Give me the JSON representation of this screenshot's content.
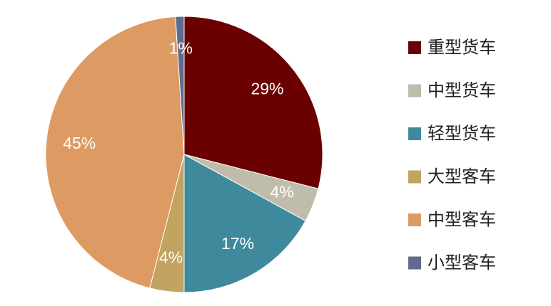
{
  "chart_data": {
    "type": "pie",
    "categories": [
      "重型货车",
      "中型货车",
      "轻型货车",
      "大型客车",
      "中型客车",
      "小型客车"
    ],
    "values": [
      29,
      4,
      17,
      4,
      45,
      1
    ],
    "value_labels": [
      "29%",
      "4%",
      "17%",
      "4%",
      "45%",
      "1%"
    ],
    "colors": [
      "#6b0000",
      "#bfbcaa",
      "#3e8a9c",
      "#c2a35f",
      "#dd9a62",
      "#5f6b8c"
    ],
    "legend": "right"
  }
}
